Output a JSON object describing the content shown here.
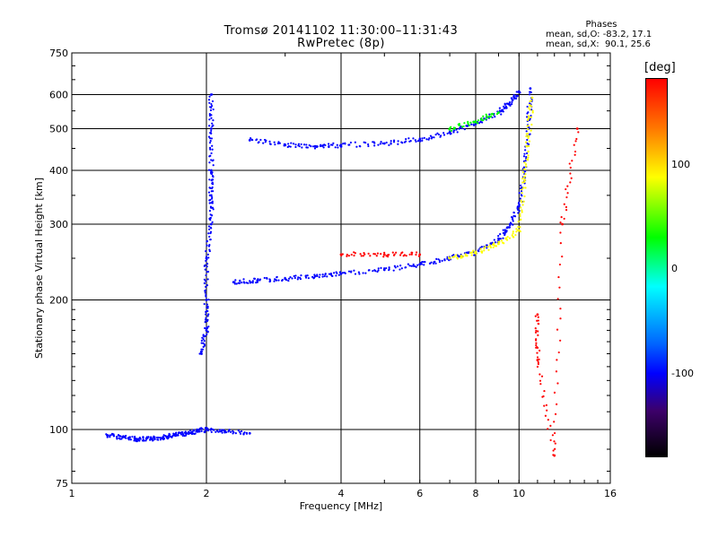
{
  "header": {
    "title_line1": "Tromsø 20141102 11:30:00–11:31:43",
    "title_line2": "RwPretec (8p)",
    "phases_title": "Phases",
    "phases_o": "mean, sd,O: -83.2, 17.1",
    "phases_x": "mean, sd,X:  90.1, 25.6"
  },
  "colorbar": {
    "label": "[deg]",
    "ticks": [
      "100",
      "0",
      "-100"
    ],
    "range": [
      -180,
      180
    ],
    "colors": [
      "#ff0000",
      "#ff7700",
      "#ffff00",
      "#00ff00",
      "#00ffff",
      "#0066ff",
      "#0000ff",
      "#3c0069",
      "#000000"
    ]
  },
  "chart_data": {
    "type": "scatter",
    "title": "Tromsø 20141102 11:30:00–11:31:43\nRwPretec (8p)",
    "xlabel": "Frequency [MHz]",
    "ylabel": "Stationary phase Virtual Height [km]",
    "x_scale": "log",
    "y_scale": "log",
    "xlim": [
      1,
      16
    ],
    "ylim": [
      75,
      750
    ],
    "x_ticks": [
      1,
      2,
      4,
      6,
      8,
      10,
      16
    ],
    "y_ticks": [
      75,
      100,
      200,
      300,
      400,
      500,
      600,
      750
    ],
    "grid": true,
    "color_by": "phase [deg]",
    "series": [
      {
        "points": [
          [
            1.2,
            97
          ],
          [
            1.3,
            96
          ],
          [
            1.4,
            95
          ],
          [
            1.5,
            95
          ],
          [
            1.6,
            96
          ],
          [
            1.7,
            97
          ],
          [
            1.8,
            98
          ],
          [
            1.9,
            99
          ],
          [
            2.0,
            100
          ],
          [
            2.2,
            99
          ],
          [
            2.5,
            98
          ]
        ],
        "phase": -100
      },
      {
        "points": [
          [
            1.95,
            150
          ],
          [
            2.0,
            170
          ],
          [
            2.0,
            200
          ],
          [
            2.0,
            250
          ],
          [
            2.05,
            300
          ],
          [
            2.05,
            350
          ],
          [
            2.05,
            400
          ],
          [
            2.05,
            500
          ],
          [
            2.05,
            600
          ]
        ],
        "phase": -100
      },
      {
        "points": [
          [
            2.3,
            220
          ],
          [
            2.6,
            222
          ],
          [
            3.0,
            224
          ],
          [
            3.5,
            227
          ],
          [
            4.0,
            230
          ],
          [
            5.0,
            235
          ],
          [
            6.0,
            242
          ],
          [
            7.0,
            250
          ],
          [
            8.0,
            258
          ],
          [
            9.0,
            275
          ],
          [
            9.5,
            295
          ],
          [
            10.0,
            330
          ],
          [
            10.3,
            400
          ],
          [
            10.5,
            500
          ],
          [
            10.6,
            620
          ]
        ],
        "phase": -100
      },
      {
        "points": [
          [
            4.0,
            255
          ],
          [
            5.0,
            255
          ],
          [
            6.0,
            255
          ]
        ],
        "phase": 160
      },
      {
        "points": [
          [
            7.0,
            250
          ],
          [
            8.0,
            258
          ],
          [
            9.0,
            270
          ],
          [
            10.0,
            290
          ],
          [
            10.3,
            380
          ],
          [
            10.5,
            480
          ],
          [
            10.7,
            590
          ]
        ],
        "phase": 90
      },
      {
        "points": [
          [
            2.5,
            470
          ],
          [
            3.0,
            458
          ],
          [
            3.5,
            455
          ],
          [
            4.0,
            458
          ],
          [
            5.0,
            462
          ],
          [
            6.0,
            472
          ],
          [
            7.0,
            490
          ],
          [
            8.0,
            515
          ],
          [
            9.0,
            545
          ],
          [
            9.5,
            570
          ],
          [
            10.0,
            610
          ]
        ],
        "phase": -100
      },
      {
        "points": [
          [
            7.0,
            500
          ],
          [
            8.0,
            520
          ],
          [
            9.0,
            545
          ]
        ],
        "phase": 60
      },
      {
        "points": [
          [
            11.0,
            185
          ],
          [
            11.0,
            145
          ],
          [
            12.0,
            87
          ],
          [
            12.5,
            300
          ],
          [
            13.5,
            500
          ]
        ],
        "phase": 160
      }
    ]
  }
}
